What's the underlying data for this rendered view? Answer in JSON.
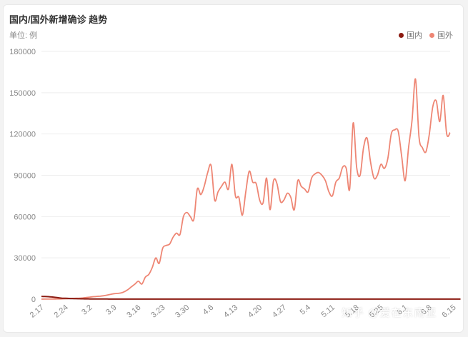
{
  "header": {
    "title": "国内/国外新增确诊 趋势",
    "unit": "单位: 例"
  },
  "watermark": "知乎 @爱在东南亚",
  "colors": {
    "domestic": "#8b1a10",
    "foreign": "#ee8674",
    "grid": "#eeeeee",
    "axis": "#888888"
  },
  "chart_data": {
    "type": "line",
    "title": "国内/国外新增确诊 趋势",
    "ylabel": "单位: 例",
    "ylim": [
      0,
      180000
    ],
    "yticks": [
      0,
      30000,
      60000,
      90000,
      120000,
      150000,
      180000
    ],
    "ytick_labels": [
      "0",
      "30000",
      "60000",
      "90000",
      "120000",
      "150000",
      "180000"
    ],
    "x_tick_labels": [
      "2.17",
      "2.24",
      "3.2",
      "3.9",
      "3.16",
      "3.23",
      "3.30",
      "4.6",
      "4.13",
      "4.20",
      "4.27",
      "5.4",
      "5.11",
      "5.18",
      "5.25",
      "6.1",
      "6.8",
      "6.15"
    ],
    "x_tick_index": [
      0,
      7,
      14,
      21,
      28,
      35,
      42,
      49,
      56,
      63,
      70,
      77,
      84,
      91,
      98,
      105,
      112,
      119
    ],
    "legend_position": "top-right",
    "grid": true,
    "series": [
      {
        "name": "国内",
        "values": [
          2000,
          1900,
          1800,
          1600,
          1300,
          1000,
          700,
          600,
          500,
          450,
          400,
          300,
          250,
          200,
          150,
          130,
          110,
          100,
          90,
          80,
          70,
          60,
          55,
          50,
          45,
          40,
          40,
          40,
          40,
          40,
          40,
          40,
          40,
          40,
          40,
          40,
          40,
          40,
          40,
          40,
          40,
          40,
          40,
          40,
          40,
          40,
          40,
          40,
          40,
          40,
          40,
          40,
          40,
          40,
          40,
          40,
          40,
          40,
          40,
          40,
          40,
          40,
          40,
          40,
          40,
          40,
          40,
          40,
          40,
          40,
          40,
          40,
          40,
          40,
          40,
          40,
          40,
          40,
          40,
          40,
          40,
          40,
          40,
          40,
          40,
          40,
          40,
          40,
          40,
          40,
          40,
          40,
          40,
          40,
          40,
          40,
          40,
          40,
          40,
          40,
          40,
          40,
          40,
          40,
          40,
          40,
          40,
          40,
          40,
          40,
          40,
          40,
          40,
          40,
          40,
          40,
          40,
          40,
          40,
          40,
          40,
          40
        ]
      },
      {
        "name": "国外",
        "values": [
          30,
          40,
          60,
          80,
          100,
          150,
          200,
          300,
          400,
          500,
          600,
          700,
          900,
          1200,
          1500,
          1800,
          2000,
          2200,
          2500,
          3000,
          3500,
          4000,
          4200,
          4500,
          5500,
          7000,
          9000,
          11000,
          13000,
          11000,
          16000,
          18000,
          23000,
          30000,
          26000,
          37000,
          39000,
          40000,
          45000,
          48000,
          47000,
          60000,
          63000,
          60000,
          58000,
          80000,
          76000,
          82000,
          92000,
          97000,
          72000,
          78000,
          82000,
          85000,
          80000,
          98000,
          75000,
          74000,
          61000,
          78000,
          93000,
          85000,
          84000,
          72000,
          70000,
          88000,
          65000,
          86000,
          84000,
          71000,
          72000,
          77000,
          74000,
          65000,
          86000,
          82000,
          80000,
          78000,
          88000,
          91000,
          92000,
          90000,
          86000,
          78000,
          75000,
          85000,
          88000,
          96000,
          95000,
          80000,
          128000,
          96000,
          90000,
          110000,
          117000,
          100000,
          88000,
          90000,
          98000,
          95000,
          102000,
          120000,
          123000,
          122000,
          104000,
          86000,
          110000,
          130000,
          160000,
          118000,
          110000,
          107000,
          120000,
          140000,
          144000,
          129000,
          148000,
          120000,
          121000
        ]
      }
    ]
  }
}
